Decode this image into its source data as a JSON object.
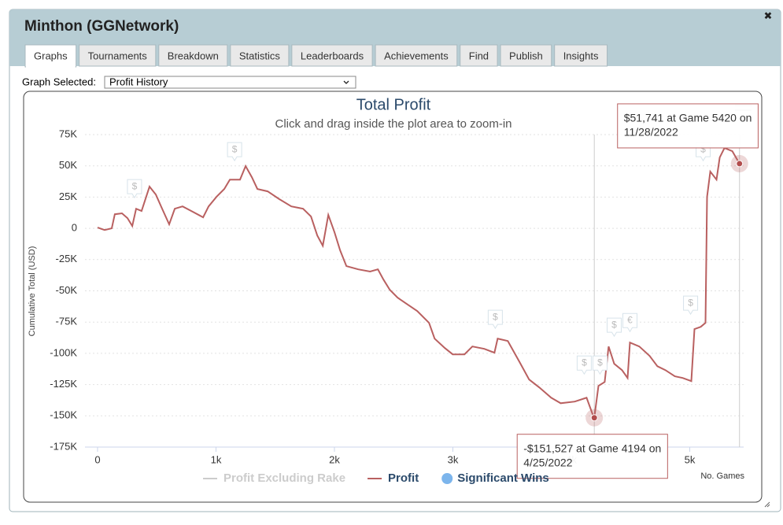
{
  "window": {
    "title": "Minthon (GGNetwork)",
    "close": "✖",
    "tabs": [
      "Graphs",
      "Tournaments",
      "Breakdown",
      "Statistics",
      "Leaderboards",
      "Achievements",
      "Find",
      "Publish",
      "Insights"
    ],
    "active_tab": 0,
    "graph_selected_label": "Graph Selected:",
    "graph_selected_value": "Profit History"
  },
  "chart_data": {
    "type": "line",
    "title": "Total Profit",
    "subtitle": "Click and drag inside the plot area to zoom-in",
    "y_label": "Cumulative Total (USD)",
    "x_label": "No. Games",
    "xlim": [
      -106,
      5455
    ],
    "ylim": [
      -175000,
      75000
    ],
    "grid": true,
    "xticks": [
      0,
      {
        "value": 1000,
        "label": "1k"
      },
      {
        "value": 2000,
        "label": "2k"
      },
      {
        "value": 3000,
        "label": "3k"
      },
      {
        "value": 4000,
        "label": "4k"
      },
      {
        "value": 5000,
        "label": "5k"
      }
    ],
    "yticks": [
      {
        "value": 75000,
        "label": "75K"
      },
      {
        "value": 50000,
        "label": "50K"
      },
      {
        "value": 25000,
        "label": "25K"
      },
      0,
      {
        "value": -25000,
        "label": "-25K"
      },
      {
        "value": -50000,
        "label": "-50K"
      },
      {
        "value": -75000,
        "label": "-75K"
      },
      {
        "value": -100000,
        "label": "-100K"
      },
      {
        "value": -125000,
        "label": "-125K"
      },
      {
        "value": -150000,
        "label": "-150K"
      },
      {
        "value": -175000,
        "label": "-175K"
      }
    ],
    "series": [
      {
        "name": "Profit Excluding Rake",
        "color": "#cccccc",
        "hidden": true
      },
      {
        "name": "Profit",
        "color": "#b96060",
        "x": [
          0,
          60,
          120,
          146,
          206,
          253,
          293,
          326,
          372,
          439,
          492,
          539,
          605,
          652,
          718,
          805,
          891,
          938,
          1004,
          1070,
          1117,
          1203,
          1250,
          1303,
          1350,
          1436,
          1536,
          1636,
          1735,
          1802,
          1855,
          1902,
          1948,
          2001,
          2048,
          2101,
          2201,
          2301,
          2367,
          2414,
          2467,
          2533,
          2600,
          2699,
          2799,
          2846,
          2932,
          2999,
          3098,
          3165,
          3265,
          3351,
          3378,
          3464,
          3564,
          3644,
          3730,
          3830,
          3910,
          4029,
          4129,
          4182,
          4194,
          4229,
          4282,
          4315,
          4362,
          4428,
          4475,
          4495,
          4574,
          4661,
          4727,
          4794,
          4874,
          4940,
          5013,
          5040,
          5093,
          5133,
          5146,
          5173,
          5226,
          5253,
          5293,
          5359,
          5420
        ],
        "values": [
          600,
          -1300,
          0,
          11300,
          12000,
          8200,
          1900,
          15700,
          13900,
          33400,
          27100,
          17000,
          3200,
          15700,
          17600,
          13200,
          8800,
          17600,
          25200,
          31500,
          39000,
          39000,
          49800,
          40900,
          31500,
          29600,
          23300,
          17600,
          15700,
          9500,
          -5700,
          -13900,
          10700,
          -3200,
          -17600,
          -30200,
          -32800,
          -34600,
          -32800,
          -41000,
          -49100,
          -55400,
          -59800,
          -66200,
          -75600,
          -88200,
          -95800,
          -100800,
          -100800,
          -94500,
          -96400,
          -99500,
          -88200,
          -90100,
          -107100,
          -121000,
          -127300,
          -135500,
          -139900,
          -138600,
          -135500,
          -149300,
          -151527,
          -126000,
          -122900,
          -94500,
          -108400,
          -113400,
          -119700,
          -91400,
          -94500,
          -102100,
          -110300,
          -113400,
          -118400,
          -119700,
          -122200,
          -80600,
          -78800,
          -75600,
          25200,
          45400,
          39000,
          56700,
          64300,
          61700,
          51741
        ]
      },
      {
        "name": "Significant Wins",
        "color": "#7cb5ec",
        "x": [
          312,
          1157,
          3358,
          4109,
          4242,
          4362,
          4495,
          5007,
          5113
        ],
        "values": [
          23900,
          53500,
          -80600,
          -117200,
          -117200,
          -86900,
          -83200,
          -69300,
          53500
        ],
        "labels": [
          "$",
          "$",
          "$",
          "$",
          "$",
          "$",
          "€",
          "$",
          "$"
        ]
      }
    ],
    "tooltips": [
      {
        "x": 5420,
        "y": 51741,
        "lines": [
          "$51,741 at Game 5420 on",
          "11/28/2022"
        ]
      },
      {
        "x": 4194,
        "y": -151527,
        "lines": [
          "-$151,527 at Game 4194 on",
          "4/25/2022"
        ]
      }
    ]
  }
}
